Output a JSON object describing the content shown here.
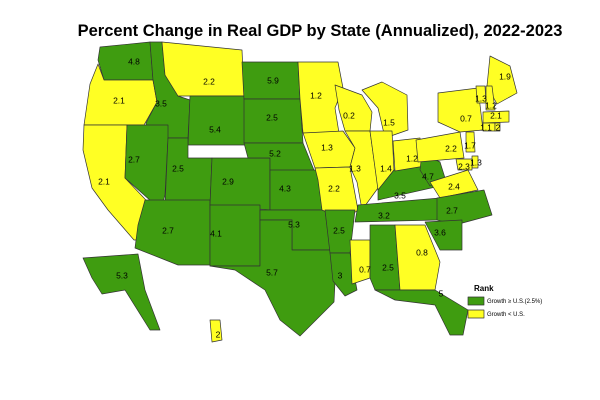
{
  "title": "Percent Change in Real GDP by State (Annualized), 2022-2023",
  "colors": {
    "above": "#3f9c10",
    "below": "#ffff24",
    "stroke": "#333333"
  },
  "legend": {
    "title": "Rank",
    "items": [
      {
        "label": "Growth ≥ U.S.(2.5%)",
        "class": "above"
      },
      {
        "label": "Growth < U.S.",
        "class": "below"
      }
    ]
  },
  "states": [
    {
      "id": "WA",
      "value": "4.8",
      "class": "above"
    },
    {
      "id": "OR",
      "value": "2.1",
      "class": "below"
    },
    {
      "id": "CA",
      "value": "2.1",
      "class": "below"
    },
    {
      "id": "ID",
      "value": "3.5",
      "class": "above"
    },
    {
      "id": "NV",
      "value": "2.7",
      "class": "above"
    },
    {
      "id": "MT",
      "value": "2.2",
      "class": "below"
    },
    {
      "id": "WY",
      "value": "5.4",
      "class": "above"
    },
    {
      "id": "UT",
      "value": "2.5",
      "class": "above"
    },
    {
      "id": "AZ",
      "value": "2.7",
      "class": "above"
    },
    {
      "id": "CO",
      "value": "2.9",
      "class": "above"
    },
    {
      "id": "NM",
      "value": "4.1",
      "class": "above"
    },
    {
      "id": "ND",
      "value": "5.9",
      "class": "above"
    },
    {
      "id": "SD",
      "value": "2.5",
      "class": "above"
    },
    {
      "id": "NE",
      "value": "5.2",
      "class": "above"
    },
    {
      "id": "KS",
      "value": "4.3",
      "class": "above"
    },
    {
      "id": "OK",
      "value": "5.3",
      "class": "above"
    },
    {
      "id": "TX",
      "value": "5.7",
      "class": "above"
    },
    {
      "id": "MN",
      "value": "1.2",
      "class": "below"
    },
    {
      "id": "IA",
      "value": "1.3",
      "class": "below"
    },
    {
      "id": "MO",
      "value": "2.2",
      "class": "below"
    },
    {
      "id": "AR",
      "value": "2.5",
      "class": "above"
    },
    {
      "id": "LA",
      "value": "3",
      "class": "above"
    },
    {
      "id": "WI",
      "value": "0.2",
      "class": "below"
    },
    {
      "id": "IL",
      "value": "1.3",
      "class": "below"
    },
    {
      "id": "MS",
      "value": "0.7",
      "class": "below"
    },
    {
      "id": "MI",
      "value": "1.5",
      "class": "below"
    },
    {
      "id": "IN",
      "value": "1.4",
      "class": "below"
    },
    {
      "id": "KY",
      "value": "3.5",
      "class": "above"
    },
    {
      "id": "TN",
      "value": "3.2",
      "class": "above"
    },
    {
      "id": "AL",
      "value": "2.5",
      "class": "above"
    },
    {
      "id": "GA",
      "value": "0.8",
      "class": "below"
    },
    {
      "id": "FL",
      "value": "5",
      "class": "above"
    },
    {
      "id": "OH",
      "value": "1.2",
      "class": "below"
    },
    {
      "id": "WV",
      "value": "4.7",
      "class": "above"
    },
    {
      "id": "VA",
      "value": "2.4",
      "class": "below"
    },
    {
      "id": "NC",
      "value": "2.7",
      "class": "above"
    },
    {
      "id": "SC",
      "value": "3.6",
      "class": "above"
    },
    {
      "id": "PA",
      "value": "2.2",
      "class": "below"
    },
    {
      "id": "NY",
      "value": "0.7",
      "class": "below"
    },
    {
      "id": "ME",
      "value": "1.9",
      "class": "below"
    },
    {
      "id": "VT",
      "value": "1.3",
      "class": "below"
    },
    {
      "id": "NH",
      "value": "1.2",
      "class": "below"
    },
    {
      "id": "MA",
      "value": "2.1",
      "class": "below"
    },
    {
      "id": "CT",
      "value": "1.1",
      "class": "below"
    },
    {
      "id": "RI",
      "value": "2",
      "class": "below"
    },
    {
      "id": "NJ",
      "value": "1.7",
      "class": "below"
    },
    {
      "id": "DE",
      "value": "1.3",
      "class": "below"
    },
    {
      "id": "MD",
      "value": "2.3",
      "class": "below"
    },
    {
      "id": "AK",
      "value": "5.3",
      "class": "above"
    },
    {
      "id": "HI",
      "value": "2",
      "class": "below"
    }
  ]
}
